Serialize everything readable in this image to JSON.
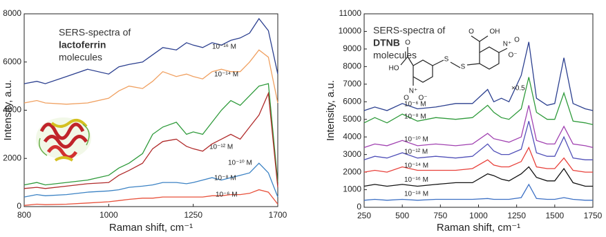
{
  "chart_data": [
    {
      "type": "line",
      "annotation": [
        "SERS-spectra of",
        "lactoferrin",
        "molecules"
      ],
      "xlabel": "Raman shift, cm⁻¹",
      "ylabel": "Intensity, a.u.",
      "xlim": [
        800,
        1700
      ],
      "xticks": [
        800,
        1000,
        1250,
        1700
      ],
      "ylim": [
        0,
        8000
      ],
      "yticks": [
        0,
        2000,
        4000,
        6000,
        8000
      ],
      "x": [
        800,
        830,
        850,
        900,
        950,
        1000,
        1030,
        1060,
        1100,
        1130,
        1160,
        1200,
        1230,
        1250,
        1300,
        1350,
        1400,
        1450,
        1500,
        1550,
        1600,
        1650,
        1700
      ],
      "series": [
        {
          "name": "10⁻¹⁶ M",
          "color": "#2b3f8f",
          "values": [
            5100,
            5200,
            5100,
            5400,
            5700,
            5500,
            5800,
            5900,
            6000,
            6300,
            6600,
            6500,
            6800,
            6700,
            6600,
            6800,
            6700,
            6900,
            7000,
            7200,
            7800,
            7300,
            5500
          ]
        },
        {
          "name": "10⁻¹⁴ M",
          "color": "#f0a060",
          "values": [
            4300,
            4400,
            4300,
            4250,
            4300,
            4500,
            4800,
            5000,
            4900,
            5200,
            5600,
            5400,
            5500,
            5400,
            5300,
            5600,
            5700,
            5600,
            5600,
            6000,
            6500,
            6200,
            4300
          ]
        },
        {
          "name": "10⁻¹² M",
          "color": "#2e9a3a",
          "values": [
            900,
            1000,
            900,
            1000,
            1100,
            1300,
            1600,
            1800,
            2200,
            3000,
            3300,
            3500,
            3000,
            3100,
            3000,
            3500,
            4000,
            4400,
            4200,
            4600,
            5000,
            5100,
            1000
          ]
        },
        {
          "name": "10⁻¹⁰ M",
          "color": "#b02a2a",
          "values": [
            750,
            800,
            750,
            850,
            950,
            1000,
            1300,
            1500,
            1800,
            2400,
            2700,
            2800,
            2500,
            2400,
            2300,
            2600,
            2800,
            3000,
            2800,
            3300,
            3800,
            4700,
            800
          ]
        },
        {
          "name": "10⁻⁸ M",
          "color": "#3b82c4",
          "values": [
            400,
            500,
            450,
            500,
            600,
            650,
            700,
            800,
            850,
            900,
            1000,
            1000,
            950,
            1000,
            1100,
            1200,
            1100,
            1200,
            1300,
            1400,
            1800,
            1400,
            400
          ]
        },
        {
          "name": "10⁻⁶ M",
          "color": "#e8503a",
          "values": [
            50,
            100,
            80,
            100,
            150,
            200,
            250,
            300,
            350,
            350,
            400,
            400,
            400,
            400,
            400,
            450,
            450,
            500,
            500,
            550,
            700,
            600,
            100
          ]
        }
      ]
    },
    {
      "type": "line",
      "annotation": [
        "SERS-spectra of",
        "DTNB",
        "molecules"
      ],
      "scale_note": "×0.5",
      "molecule_labels": [
        "O",
        "HO",
        "N⁺",
        "O",
        "O⁻",
        "S",
        "S",
        "O",
        "OH",
        "N⁺",
        "O",
        "O⁻"
      ],
      "xlabel": "Raman shift, cm⁻¹",
      "ylabel": "Intensity, a.u.",
      "xlim": [
        250,
        1750
      ],
      "xticks": [
        250,
        500,
        750,
        1000,
        1250,
        1500,
        1750
      ],
      "ylim": [
        0,
        11000
      ],
      "yticks": [
        0,
        1000,
        2000,
        3000,
        4000,
        5000,
        6000,
        7000,
        8000,
        9000,
        10000,
        11000
      ],
      "x": [
        250,
        320,
        400,
        500,
        600,
        720,
        850,
        960,
        1060,
        1100,
        1150,
        1200,
        1280,
        1330,
        1380,
        1450,
        1500,
        1560,
        1620,
        1700,
        1750
      ],
      "series": [
        {
          "name": "10⁻⁶ M",
          "color": "#2b3f8f",
          "values": [
            5500,
            5700,
            5500,
            5900,
            5600,
            5700,
            5900,
            5900,
            6700,
            6000,
            6200,
            6000,
            7500,
            9400,
            6200,
            5800,
            5900,
            8500,
            5900,
            5600,
            5500
          ]
        },
        {
          "name": "10⁻⁸ M",
          "color": "#2e9a3a",
          "values": [
            4800,
            5100,
            4800,
            5300,
            4900,
            5100,
            5000,
            5100,
            5800,
            5400,
            5100,
            5000,
            5600,
            7400,
            5400,
            5000,
            5000,
            6500,
            4900,
            4800,
            4700
          ]
        },
        {
          "name": "10⁻¹⁰ M",
          "color": "#a040b0",
          "values": [
            3400,
            3600,
            3500,
            3800,
            3500,
            3600,
            3500,
            3600,
            4200,
            3900,
            3800,
            3700,
            4000,
            5800,
            3800,
            3600,
            3600,
            4600,
            3600,
            3500,
            3400
          ]
        },
        {
          "name": "10⁻¹² M",
          "color": "#5050b8",
          "values": [
            2700,
            2900,
            2800,
            3100,
            2800,
            2900,
            2800,
            2900,
            3600,
            3200,
            3000,
            3000,
            3300,
            4900,
            3100,
            2900,
            2900,
            4000,
            2800,
            2700,
            2700
          ]
        },
        {
          "name": "10⁻¹⁴ M",
          "color": "#e8403a",
          "values": [
            2000,
            2100,
            2000,
            2300,
            2100,
            2100,
            2100,
            2200,
            2700,
            2400,
            2300,
            2300,
            2600,
            3400,
            2300,
            2200,
            2200,
            2800,
            2100,
            2000,
            2000
          ]
        },
        {
          "name": "10⁻¹⁶ M",
          "color": "#111111",
          "values": [
            1200,
            1300,
            1200,
            1300,
            1200,
            1300,
            1400,
            1400,
            1900,
            1800,
            1600,
            1500,
            1900,
            2300,
            1700,
            1500,
            1500,
            2200,
            1400,
            1200,
            1200
          ]
        },
        {
          "name": "10⁻¹⁸ M",
          "color": "#3b6fc4",
          "values": [
            400,
            450,
            400,
            450,
            400,
            450,
            450,
            450,
            500,
            450,
            450,
            450,
            550,
            1300,
            500,
            450,
            450,
            550,
            450,
            400,
            400
          ]
        }
      ]
    }
  ]
}
